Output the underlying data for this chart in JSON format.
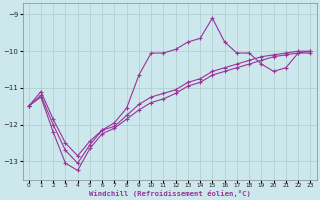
{
  "xlabel": "Windchill (Refroidissement éolien,°C)",
  "background_color": "#cce8ec",
  "grid_color": "#aacccc",
  "line_color": "#993399",
  "xlim": [
    -0.5,
    23.5
  ],
  "ylim": [
    -13.5,
    -8.7
  ],
  "yticks": [
    -13,
    -12,
    -11,
    -10,
    -9
  ],
  "xticks": [
    0,
    1,
    2,
    3,
    4,
    5,
    6,
    7,
    8,
    9,
    10,
    11,
    12,
    13,
    14,
    15,
    16,
    17,
    18,
    19,
    20,
    21,
    22,
    23
  ],
  "line1_x": [
    0,
    1,
    2,
    3,
    4,
    5,
    6,
    7,
    8,
    9,
    10,
    11,
    12,
    13,
    14,
    15,
    16,
    17,
    18,
    19,
    20,
    21,
    22,
    23
  ],
  "line1_y": [
    -11.5,
    -11.1,
    -11.85,
    -12.5,
    -12.85,
    -12.45,
    -12.15,
    -11.95,
    -11.55,
    -10.65,
    -10.05,
    -10.05,
    -9.95,
    -9.75,
    -9.65,
    -9.1,
    -9.75,
    -10.05,
    -10.05,
    -10.35,
    -10.55,
    -10.45,
    -10.05,
    -10.05
  ],
  "line2_x": [
    0,
    1,
    2,
    3,
    4,
    5,
    6,
    7,
    8,
    9,
    10,
    11,
    12,
    13,
    14,
    15,
    16,
    17,
    18,
    19,
    20,
    21,
    22,
    23
  ],
  "line2_y": [
    -11.5,
    -11.2,
    -12.0,
    -12.7,
    -13.05,
    -12.55,
    -12.15,
    -12.05,
    -11.75,
    -11.45,
    -11.25,
    -11.15,
    -11.05,
    -10.85,
    -10.75,
    -10.55,
    -10.45,
    -10.35,
    -10.25,
    -10.15,
    -10.1,
    -10.05,
    -10.0,
    -10.0
  ],
  "line3_x": [
    0,
    1,
    2,
    3,
    4,
    5,
    6,
    7,
    8,
    9,
    10,
    11,
    12,
    13,
    14,
    15,
    16,
    17,
    18,
    19,
    20,
    21,
    22,
    23
  ],
  "line3_y": [
    -11.5,
    -11.25,
    -12.2,
    -13.05,
    -13.25,
    -12.65,
    -12.25,
    -12.1,
    -11.85,
    -11.6,
    -11.4,
    -11.3,
    -11.15,
    -10.95,
    -10.85,
    -10.65,
    -10.55,
    -10.45,
    -10.35,
    -10.25,
    -10.15,
    -10.1,
    -10.05,
    -10.0
  ]
}
